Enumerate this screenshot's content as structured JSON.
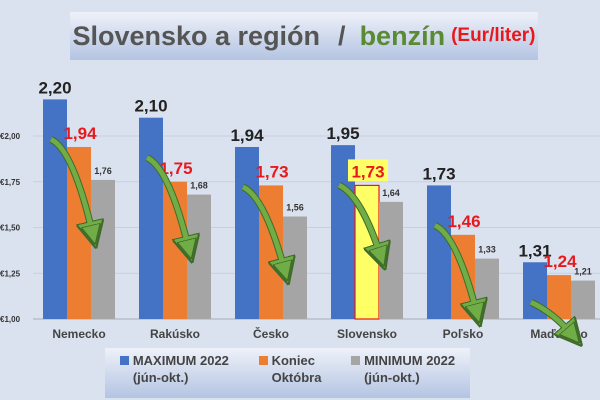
{
  "title": {
    "part1": "Slovensko a región",
    "sep": "/",
    "part2": "benzín",
    "unit": "(Eur/liter)"
  },
  "chart_data": {
    "type": "bar",
    "title": "Slovensko a región / benzín (Eur/liter)",
    "categories": [
      "Nemecko",
      "Rakúsko",
      "Česko",
      "Slovensko",
      "Poľsko",
      "Maďarsko"
    ],
    "series": [
      {
        "name": "MAXIMUM 2022 (jún-okt.)",
        "name_lines": [
          "MAXIMUM 2022",
          "(jún-okt.)"
        ],
        "color": "#4472c4",
        "values": [
          2.2,
          2.1,
          1.94,
          1.95,
          1.73,
          1.31
        ],
        "labels": [
          "2,20",
          "2,10",
          "1,94",
          "1,95",
          "1,73",
          "1,31"
        ]
      },
      {
        "name": "Koniec Októbra",
        "name_lines": [
          "Koniec",
          "Októbra"
        ],
        "color": "#ed7d31",
        "values": [
          1.94,
          1.75,
          1.73,
          1.73,
          1.46,
          1.24
        ],
        "labels": [
          "1,94",
          "1,75",
          "1,73",
          "1,73",
          "1,46",
          "1,24"
        ]
      },
      {
        "name": "MINIMUM 2022 (jún-okt.)",
        "name_lines": [
          "MINIMUM 2022",
          "(jún-okt.)"
        ],
        "color": "#a5a5a5",
        "values": [
          1.76,
          1.68,
          1.56,
          1.64,
          1.33,
          1.21
        ],
        "labels": [
          "1,76",
          "1,68",
          "1,56",
          "1,64",
          "1,33",
          "1,21"
        ]
      }
    ],
    "highlight": {
      "category": "Slovensko",
      "series": "Koniec Októbra",
      "color": "#ffff66",
      "border": "#e8191c"
    },
    "yticks": [
      1.0,
      1.25,
      1.5,
      1.75,
      2.0
    ],
    "ytick_labels": [
      "€1,00",
      "€1,25",
      "€1,50",
      "€1,75",
      "€2,00"
    ],
    "ylim": [
      1.0,
      2.25
    ],
    "grid": true,
    "legend": "bottom",
    "arrow_color": "#70ad47"
  }
}
